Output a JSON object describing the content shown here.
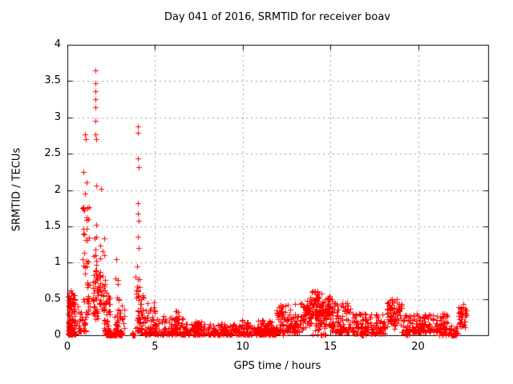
{
  "page": {
    "background": "#ffffff"
  },
  "chart_data": {
    "type": "scatter",
    "title": "Day 041 of 2016, SRMTID for receiver boav",
    "xlabel": "GPS time / hours",
    "ylabel": "SRMTID / TECUs",
    "xlim": [
      0,
      24
    ],
    "ylim": [
      0,
      4
    ],
    "x_ticks": [
      {
        "v": 0,
        "label": "0"
      },
      {
        "v": 5,
        "label": "5"
      },
      {
        "v": 10,
        "label": "10"
      },
      {
        "v": 15,
        "label": "15"
      },
      {
        "v": 20,
        "label": "20"
      }
    ],
    "y_ticks": [
      {
        "v": 0,
        "label": "0"
      },
      {
        "v": 0.5,
        "label": "0.5"
      },
      {
        "v": 1,
        "label": "1"
      },
      {
        "v": 1.5,
        "label": "1.5"
      },
      {
        "v": 2,
        "label": "2"
      },
      {
        "v": 2.5,
        "label": "2.5"
      },
      {
        "v": 3,
        "label": "3"
      },
      {
        "v": 3.5,
        "label": "3.5"
      },
      {
        "v": 4,
        "label": "4"
      }
    ],
    "grid": true,
    "legend": "none",
    "marker": "plus",
    "colors": {
      "marker": "#ff0000",
      "grid": "#9b9b9b",
      "axis": "#000000",
      "text": "#000000",
      "background": "#ffffff"
    },
    "seed": 20160411,
    "points": [
      [
        0.92,
        2.25
      ],
      [
        1.02,
        2.77
      ],
      [
        1.07,
        2.7
      ],
      [
        1.1,
        2.1
      ],
      [
        1.0,
        1.95
      ],
      [
        0.88,
        1.05
      ],
      [
        1.58,
        3.65
      ],
      [
        1.6,
        3.47
      ],
      [
        1.6,
        3.36
      ],
      [
        1.6,
        3.25
      ],
      [
        1.61,
        3.14
      ],
      [
        1.62,
        2.95
      ],
      [
        1.6,
        2.77
      ],
      [
        1.65,
        2.7
      ],
      [
        1.63,
        2.06
      ],
      [
        1.92,
        2.02
      ],
      [
        2.8,
        1.05
      ],
      [
        4.02,
        2.88
      ],
      [
        4.04,
        2.79
      ],
      [
        4.03,
        2.44
      ],
      [
        4.05,
        2.31
      ],
      [
        4.04,
        1.82
      ],
      [
        4.0,
        1.68
      ],
      [
        4.06,
        1.58
      ],
      [
        4.02,
        1.35
      ],
      [
        4.05,
        1.2
      ]
    ],
    "clusters": [
      {
        "x": [
          0.03,
          0.45
        ],
        "v": [
          0.01,
          0.62
        ],
        "n": 110,
        "dist": "low"
      },
      {
        "x": [
          0.05,
          0.38
        ],
        "v": [
          0.38,
          0.56
        ],
        "n": 8,
        "dist": "uniform"
      },
      {
        "x": [
          0.55,
          1.05
        ],
        "v": [
          0.05,
          0.5
        ],
        "n": 35,
        "dist": "low"
      },
      {
        "x": [
          0.85,
          1.3
        ],
        "v": [
          1.28,
          1.8
        ],
        "n": 16,
        "dist": "uniform"
      },
      {
        "x": [
          0.85,
          1.2
        ],
        "v": [
          0.82,
          1.18
        ],
        "n": 8,
        "dist": "uniform"
      },
      {
        "x": [
          1.08,
          1.28
        ],
        "v": [
          0.28,
          0.8
        ],
        "n": 18,
        "dist": "uniform"
      },
      {
        "x": [
          1.45,
          1.78
        ],
        "v": [
          0.22,
          0.9
        ],
        "n": 45,
        "dist": "uniform"
      },
      {
        "x": [
          1.5,
          1.72
        ],
        "v": [
          0.95,
          1.52
        ],
        "n": 8,
        "dist": "uniform"
      },
      {
        "x": [
          1.8,
          2.15
        ],
        "v": [
          0.28,
          0.88
        ],
        "n": 30,
        "dist": "uniform"
      },
      {
        "x": [
          1.85,
          2.12
        ],
        "v": [
          1.0,
          1.42
        ],
        "n": 5,
        "dist": "uniform"
      },
      {
        "x": [
          2.1,
          2.45
        ],
        "v": [
          0.02,
          0.65
        ],
        "n": 40,
        "dist": "low"
      },
      {
        "x": [
          2.2,
          2.42
        ],
        "v": [
          0.0,
          0.03
        ],
        "n": 25,
        "dist": "uniform"
      },
      {
        "x": [
          2.38,
          3.15
        ],
        "v": [
          0.0,
          0.04
        ],
        "n": 85,
        "dist": "uniform"
      },
      {
        "x": [
          2.7,
          2.92
        ],
        "v": [
          0.08,
          1.02
        ],
        "n": 22,
        "dist": "low"
      },
      {
        "x": [
          2.95,
          3.3
        ],
        "v": [
          0.05,
          0.42
        ],
        "n": 14,
        "dist": "low"
      },
      {
        "x": [
          3.68,
          3.86
        ],
        "v": [
          0.0,
          0.04
        ],
        "n": 12,
        "dist": "uniform"
      },
      {
        "x": [
          3.9,
          4.12
        ],
        "v": [
          0.05,
          0.98
        ],
        "n": 30,
        "dist": "low"
      },
      {
        "x": [
          4.12,
          4.42
        ],
        "v": [
          0.04,
          0.6
        ],
        "n": 28,
        "dist": "low"
      },
      {
        "x": [
          4.42,
          5.05
        ],
        "v": [
          0.02,
          0.46
        ],
        "n": 55,
        "dist": "low"
      },
      {
        "x": [
          5.0,
          6.6
        ],
        "v": [
          0.01,
          0.26
        ],
        "n": 95,
        "dist": "low"
      },
      {
        "x": [
          6.1,
          6.38
        ],
        "v": [
          0.12,
          0.34
        ],
        "n": 12,
        "dist": "uniform"
      },
      {
        "x": [
          6.6,
          11.9
        ],
        "v": [
          0.01,
          0.16
        ],
        "n": 310,
        "dist": "low"
      },
      {
        "x": [
          7.3,
          7.7
        ],
        "v": [
          0.08,
          0.2
        ],
        "n": 14,
        "dist": "uniform"
      },
      {
        "x": [
          8.7,
          9.1
        ],
        "v": [
          0.06,
          0.16
        ],
        "n": 10,
        "dist": "uniform"
      },
      {
        "x": [
          9.9,
          10.35
        ],
        "v": [
          0.08,
          0.23
        ],
        "n": 16,
        "dist": "uniform"
      },
      {
        "x": [
          10.85,
          11.25
        ],
        "v": [
          0.08,
          0.26
        ],
        "n": 16,
        "dist": "uniform"
      },
      {
        "x": [
          11.4,
          11.7
        ],
        "v": [
          0.06,
          0.2
        ],
        "n": 12,
        "dist": "uniform"
      },
      {
        "x": [
          11.9,
          13.4
        ],
        "v": [
          0.04,
          0.44
        ],
        "n": 130,
        "dist": "low"
      },
      {
        "x": [
          13.4,
          15.15
        ],
        "v": [
          0.06,
          0.55
        ],
        "n": 170,
        "dist": "mid"
      },
      {
        "x": [
          13.9,
          14.5
        ],
        "v": [
          0.44,
          0.64
        ],
        "n": 18,
        "dist": "uniform"
      },
      {
        "x": [
          14.7,
          15.0
        ],
        "v": [
          0.38,
          0.56
        ],
        "n": 10,
        "dist": "uniform"
      },
      {
        "x": [
          15.1,
          16.2
        ],
        "v": [
          0.04,
          0.46
        ],
        "n": 90,
        "dist": "low"
      },
      {
        "x": [
          16.2,
          18.15
        ],
        "v": [
          0.02,
          0.3
        ],
        "n": 140,
        "dist": "low"
      },
      {
        "x": [
          18.2,
          19.05
        ],
        "v": [
          0.08,
          0.52
        ],
        "n": 70,
        "dist": "mid"
      },
      {
        "x": [
          19.05,
          21.7
        ],
        "v": [
          0.04,
          0.3
        ],
        "n": 175,
        "dist": "low"
      },
      {
        "x": [
          21.7,
          22.25
        ],
        "v": [
          0.0,
          0.16
        ],
        "n": 35,
        "dist": "low"
      },
      {
        "x": [
          22.25,
          22.75
        ],
        "v": [
          0.08,
          0.46
        ],
        "n": 42,
        "dist": "mid"
      },
      {
        "x": [
          4.3,
          4.8
        ],
        "v": [
          0.0,
          0.02
        ],
        "n": 6,
        "dist": "uniform"
      },
      {
        "x": [
          6.8,
          12.3
        ],
        "v": [
          0.0,
          0.02
        ],
        "n": 14,
        "dist": "uniform"
      },
      {
        "x": [
          13.6,
          14.8
        ],
        "v": [
          0.0,
          0.02
        ],
        "n": 8,
        "dist": "uniform"
      },
      {
        "x": [
          16.7,
          17.1
        ],
        "v": [
          0.0,
          0.02
        ],
        "n": 6,
        "dist": "uniform"
      },
      {
        "x": [
          19.2,
          19.6
        ],
        "v": [
          0.0,
          0.02
        ],
        "n": 6,
        "dist": "uniform"
      },
      {
        "x": [
          20.9,
          21.6
        ],
        "v": [
          0.0,
          0.02
        ],
        "n": 6,
        "dist": "uniform"
      }
    ]
  }
}
